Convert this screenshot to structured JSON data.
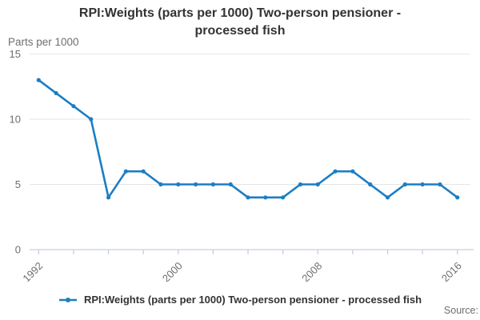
{
  "source_label": "Source:",
  "legend": {
    "label": "RPI:Weights (parts per 1000) Two-person pensioner - processed fish"
  },
  "colors": {
    "line": "#1b7ec4",
    "grid": "#e6e6e6",
    "axis": "#c5cfe1",
    "tick_text": "#6e6e6e",
    "title_text": "#333333"
  },
  "chart_data": {
    "type": "line",
    "title": "RPI:Weights (parts per 1000) Two-person pensioner - processed fish",
    "ylabel": "Parts per 1000",
    "xlabel": "",
    "x": [
      1992,
      1993,
      1994,
      1995,
      1996,
      1997,
      1998,
      1999,
      2000,
      2001,
      2002,
      2003,
      2004,
      2005,
      2006,
      2007,
      2008,
      2009,
      2010,
      2011,
      2012,
      2013,
      2014,
      2015,
      2016
    ],
    "series": [
      {
        "name": "RPI:Weights (parts per 1000) Two-person pensioner - processed fish",
        "values": [
          13,
          12,
          11,
          10,
          4,
          6,
          6,
          5,
          5,
          5,
          5,
          5,
          4,
          4,
          4,
          5,
          5,
          6,
          6,
          5,
          4,
          5,
          5,
          5,
          4
        ]
      }
    ],
    "ylim": [
      0,
      15
    ],
    "yticks": [
      0,
      5,
      10,
      15
    ],
    "xticks_labeled": [
      1992,
      2000,
      2008,
      2016
    ],
    "xtick_step": 2,
    "grid": "horizontal",
    "legend_position": "bottom",
    "marker": "circle"
  }
}
